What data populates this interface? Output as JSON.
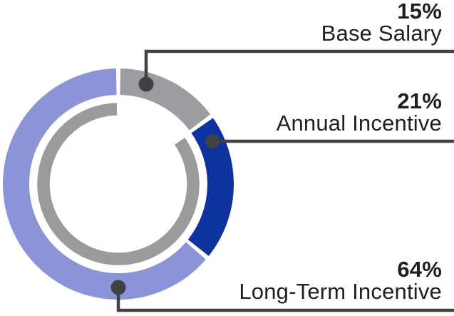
{
  "chart_data": {
    "type": "pie",
    "variant": "donut",
    "start_angle_deg": 0,
    "clockwise": true,
    "legend_position": "right",
    "segments": [
      {
        "label": "Base Salary",
        "value": 15,
        "display_pct": "15%",
        "color": "#9b9da0"
      },
      {
        "label": "Annual Incentive",
        "value": 21,
        "display_pct": "21%",
        "color": "#0d339e"
      },
      {
        "label": "Long-Term Incentive",
        "value": 64,
        "display_pct": "64%",
        "color": "#8b94d6"
      }
    ],
    "inner_ring": {
      "color": "#9b9b9d",
      "arc_start_deg": 54,
      "arc_end_deg": 360
    }
  },
  "style": {
    "connector_color": "#414042",
    "text_color": "#1f1f23",
    "background": "#ffffff"
  }
}
